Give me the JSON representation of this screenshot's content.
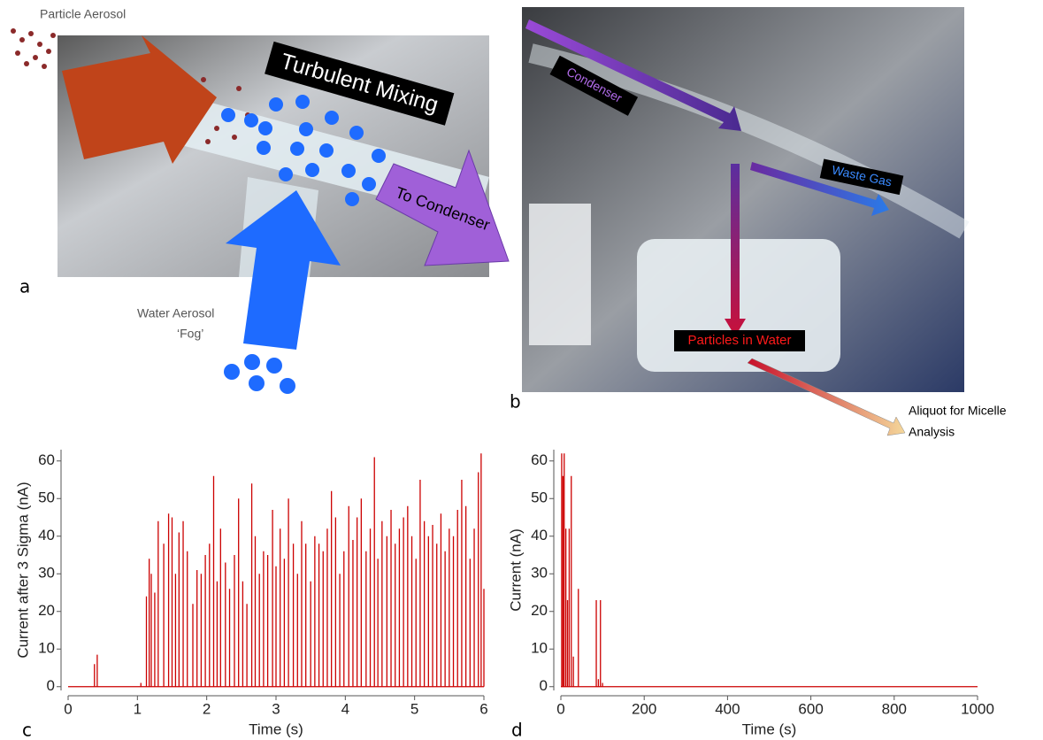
{
  "panel_a": {
    "label": "a",
    "particle": "Particle Aerosol",
    "mixing": "Turbulent Mixing",
    "condenser": "To Condenser",
    "water": "Water Aerosol",
    "fog": "‘Fog’"
  },
  "panel_b": {
    "label": "b",
    "condenser": "Condenser",
    "waste": "Waste Gas",
    "particles": "Particles in Water",
    "aliquot": [
      "Aliquot for Micelle",
      "Analysis"
    ]
  },
  "chart_data": [
    {
      "type": "spike",
      "panel": "c",
      "x_label": "Time (s)",
      "y_label": "Current after 3 Sigma (nA)",
      "color": "#cc0000",
      "xlim": [
        0,
        6
      ],
      "ylim": [
        -1,
        63
      ],
      "xticks": [
        0,
        1,
        2,
        3,
        4,
        5,
        6
      ],
      "yticks": [
        0,
        10,
        20,
        30,
        40,
        50,
        60
      ],
      "x": [
        0.38,
        0.42,
        1.05,
        1.13,
        1.17,
        1.2,
        1.25,
        1.3,
        1.38,
        1.45,
        1.5,
        1.55,
        1.6,
        1.66,
        1.72,
        1.8,
        1.86,
        1.92,
        1.98,
        2.04,
        2.1,
        2.15,
        2.2,
        2.27,
        2.33,
        2.4,
        2.46,
        2.52,
        2.58,
        2.65,
        2.7,
        2.76,
        2.82,
        2.88,
        2.95,
        3.0,
        3.06,
        3.12,
        3.18,
        3.25,
        3.31,
        3.37,
        3.43,
        3.5,
        3.56,
        3.62,
        3.68,
        3.74,
        3.8,
        3.86,
        3.92,
        3.98,
        4.05,
        4.11,
        4.17,
        4.23,
        4.3,
        4.36,
        4.42,
        4.47,
        4.53,
        4.6,
        4.66,
        4.72,
        4.78,
        4.84,
        4.9,
        4.96,
        5.02,
        5.08,
        5.14,
        5.2,
        5.26,
        5.32,
        5.38,
        5.44,
        5.5,
        5.56,
        5.62,
        5.68,
        5.74,
        5.8,
        5.86,
        5.92,
        5.96,
        6.0
      ],
      "values": [
        6,
        8.5,
        1,
        24,
        34,
        30,
        25,
        44,
        38,
        46,
        45,
        30,
        41,
        44,
        36,
        22,
        31,
        30,
        35,
        38,
        56,
        28,
        42,
        33,
        26,
        35,
        50,
        28,
        22,
        54,
        40,
        30,
        36,
        35,
        47,
        32,
        42,
        34,
        50,
        38,
        30,
        44,
        38,
        28,
        40,
        38,
        36,
        42,
        52,
        45,
        30,
        36,
        48,
        39,
        45,
        50,
        36,
        42,
        61,
        34,
        44,
        40,
        47,
        38,
        42,
        45,
        48,
        40,
        34,
        55,
        44,
        40,
        43,
        38,
        46,
        36,
        42,
        40,
        47,
        55,
        48,
        34,
        42,
        57,
        62,
        26
      ]
    },
    {
      "type": "spike",
      "panel": "d",
      "x_label": "Time (s)",
      "y_label": "Current (nA)",
      "color": "#cc0000",
      "xlim": [
        0,
        1000
      ],
      "ylim": [
        -1,
        63
      ],
      "xticks": [
        0,
        200,
        400,
        600,
        800,
        1000
      ],
      "yticks": [
        0,
        10,
        20,
        30,
        40,
        50,
        60
      ],
      "x": [
        2,
        5,
        8,
        12,
        16,
        20,
        25,
        30,
        42,
        85,
        90,
        95,
        100
      ],
      "values": [
        62,
        56,
        62,
        42,
        23,
        42,
        56,
        8,
        26,
        23,
        2,
        23,
        1
      ]
    }
  ]
}
